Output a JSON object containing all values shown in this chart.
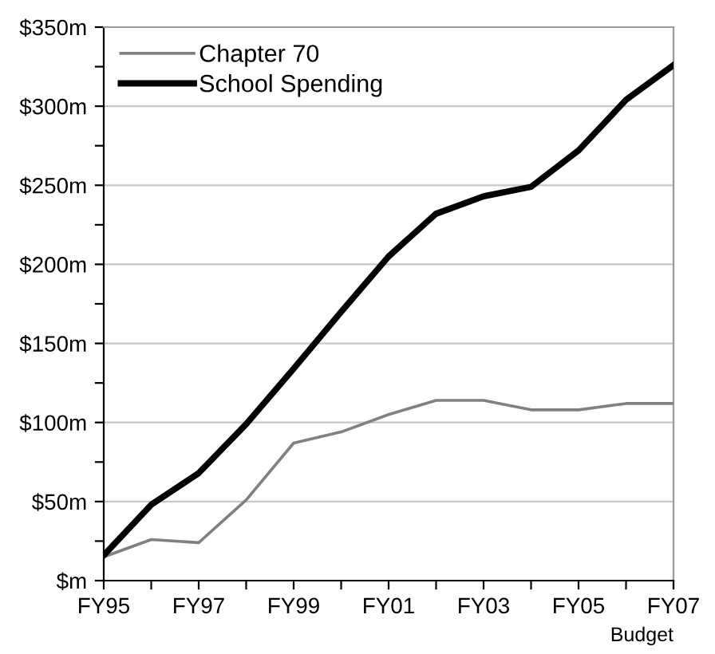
{
  "chart_data": {
    "type": "line",
    "xlabel": "Budget",
    "categories": [
      "FY95",
      null,
      "FY97",
      null,
      "FY99",
      null,
      "FY01",
      null,
      "FY03",
      null,
      "FY05",
      null,
      "FY07"
    ],
    "series": [
      {
        "name": "Chapter 70",
        "color": "#808080",
        "values": [
          15,
          26,
          24,
          51,
          87,
          94,
          105,
          114,
          114,
          108,
          108,
          112,
          112
        ]
      },
      {
        "name": "School Spending",
        "color": "#000000",
        "values": [
          16,
          48,
          68,
          99,
          134,
          170,
          205,
          232,
          243,
          249,
          272,
          304,
          326
        ]
      }
    ],
    "ylim": [
      0,
      350
    ],
    "yticks": [
      {
        "value": 0,
        "label": "$m"
      },
      {
        "value": 25,
        "label": null
      },
      {
        "value": 50,
        "label": "$50m"
      },
      {
        "value": 75,
        "label": null
      },
      {
        "value": 100,
        "label": "$100m"
      },
      {
        "value": 125,
        "label": null
      },
      {
        "value": 150,
        "label": "$150m"
      },
      {
        "value": 175,
        "label": null
      },
      {
        "value": 200,
        "label": "$200m"
      },
      {
        "value": 225,
        "label": null
      },
      {
        "value": 250,
        "label": "$250m"
      },
      {
        "value": 275,
        "label": null
      },
      {
        "value": 300,
        "label": "$300m"
      },
      {
        "value": 325,
        "label": null
      },
      {
        "value": 350,
        "label": "$350m"
      }
    ],
    "grid": "y",
    "legend": "top left",
    "marker": "none",
    "line_style": "solid"
  }
}
